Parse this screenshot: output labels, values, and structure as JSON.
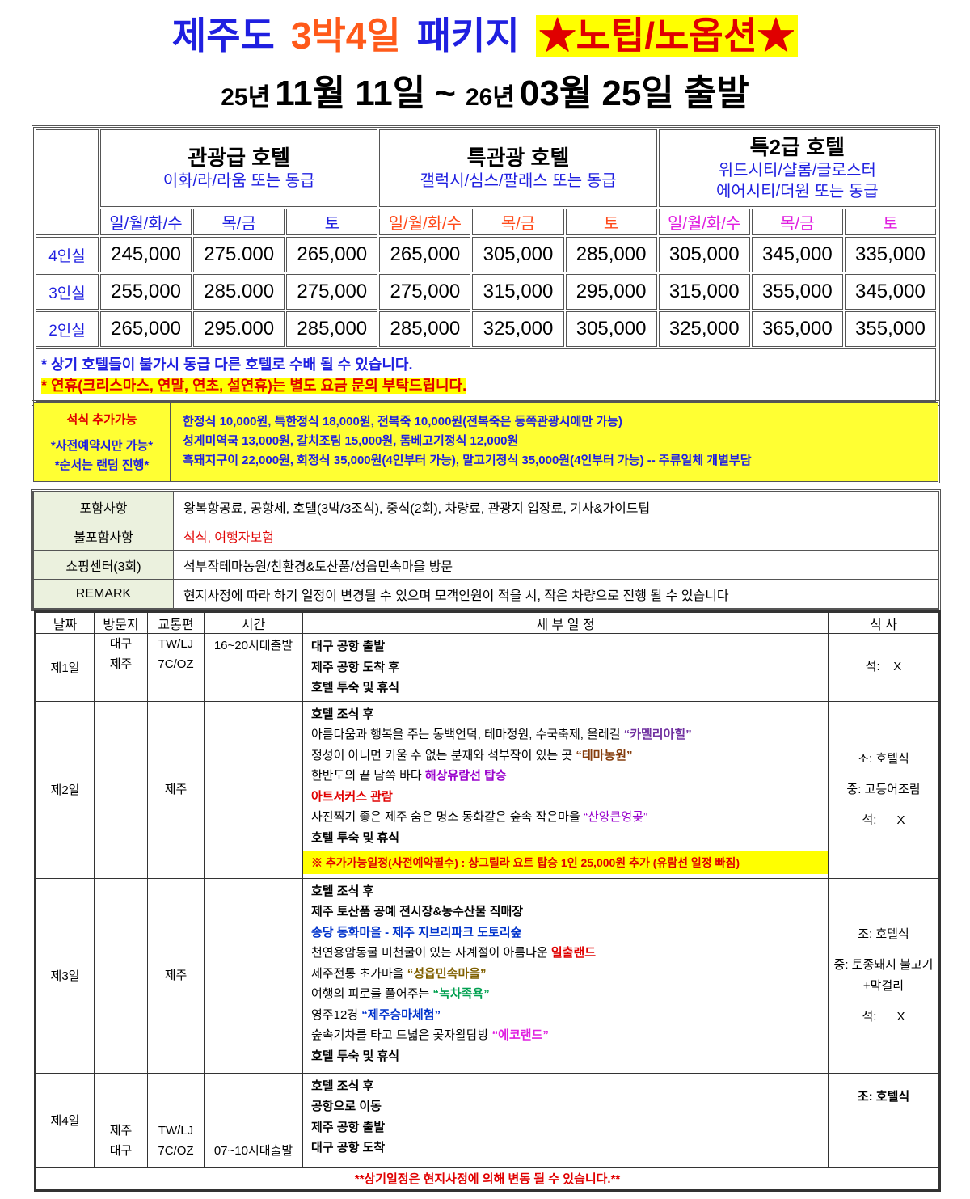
{
  "title": {
    "parts": [
      "제주도",
      "3박4일",
      "패키지",
      "★노팁/노옵션★"
    ],
    "dates": [
      "25년",
      "11월",
      "11일",
      "~",
      "26년",
      "03월",
      "25일",
      "출발"
    ]
  },
  "price_table": {
    "hotels": [
      {
        "name": "관광급 호텔",
        "examples": [
          "이화/라/라움 또는 동급"
        ],
        "days": [
          "일/월/화/수",
          "목/금",
          "토"
        ]
      },
      {
        "name": "특관광 호텔",
        "examples": [
          "갤럭시/심스/팔래스 또는 동급"
        ],
        "days": [
          "일/월/화/수",
          "목/금",
          "토"
        ]
      },
      {
        "name": "특2급 호텔",
        "examples": [
          "위드시티/샬롬/글로스터",
          "에어시티/더원 또는 동급"
        ],
        "days": [
          "일/월/화/수",
          "목/금",
          "토"
        ]
      }
    ],
    "rows": [
      {
        "room": "4인실",
        "prices": [
          "245,000",
          "275.000",
          "265,000",
          "265,000",
          "305,000",
          "285,000",
          "305,000",
          "345,000",
          "335,000"
        ]
      },
      {
        "room": "3인실",
        "prices": [
          "255,000",
          "285.000",
          "275,000",
          "275,000",
          "315,000",
          "295,000",
          "315,000",
          "355,000",
          "345,000"
        ]
      },
      {
        "room": "2인실",
        "prices": [
          "265,000",
          "295.000",
          "285,000",
          "285,000",
          "325,000",
          "305,000",
          "325,000",
          "365,000",
          "355,000"
        ]
      }
    ],
    "notes": [
      "* 상기 호텔들이 불가시 동급 다른 호텔로 수배 될 수 있습니다.",
      "* 연휴(크리스마스, 연말, 연초, 설연휴)는 별도 요금 문의 부탁드립니다."
    ]
  },
  "dinner": {
    "title": "석식 추가가능",
    "conditions": [
      "*사전예약시만 가능*",
      "*순서는 랜덤 진행*"
    ],
    "menu": [
      "한정식 10,000원, 특한정식 18,000원, 전복죽 10,000원(전복죽은 동쪽관광시에만 가능)",
      "성게미역국 13,000원, 갈치조림 15,000원, 돔베고기정식 12,000원",
      "흑돼지구이 22,000원, 회정식 35,000원(4인부터 가능), 말고기정식 35,000원(4인부터 가능) -- 주류일체 개별부담"
    ]
  },
  "info": {
    "rows": [
      {
        "label": "포함사항",
        "value": "왕복항공료, 공항세, 호텔(3박/3조식), 중식(2회), 차량료, 관광지 입장료, 기사&가이드팁"
      },
      {
        "label": "불포함사항",
        "value": "석식, 여행자보험"
      },
      {
        "label": "쇼핑센터(3회)",
        "value": "석부작테마농원/친환경&토산품/성읍민속마을 방문"
      },
      {
        "label": "REMARK",
        "value": "현지사정에 따라 하기 일정이 변경될 수 있으며 모객인원이 적을 시, 작은 차량으로 진행 될 수 있습니다"
      }
    ]
  },
  "itinerary": {
    "headers": [
      "날짜",
      "방문지",
      "교통편",
      "시간",
      "세 부 일 정",
      "식  사"
    ],
    "days": [
      {
        "day": "제1일",
        "places": [
          "대구",
          "제주"
        ],
        "transport": [
          "TW/LJ",
          "7C/OZ"
        ],
        "time": "16~20시대출발",
        "schedule": [
          [
            {
              "text": "대구 공항 출발",
              "bold": true
            }
          ],
          [
            {
              "text": "제주 공항 도착 후",
              "bold": true
            }
          ],
          [
            {
              "text": "호텔 투숙 및 휴식",
              "bold": true
            }
          ]
        ],
        "meals": [
          "석:    X"
        ],
        "meals_bold": false
      },
      {
        "day": "제2일",
        "places": [],
        "transport": [
          "제주"
        ],
        "time": "",
        "schedule": [
          [
            {
              "text": "호텔 조식 후",
              "bold": true
            }
          ],
          [
            {
              "text": "아름다움과 행복을 주는 동백언덕, 테마정원, 수국축제, 올레길 "
            },
            {
              "text": "“카멜리아힐”",
              "color": "#7030a0",
              "bold": true
            }
          ],
          [
            {
              "text": "정성이 아니면 키울 수 없는 분재와 석부작이 있는 곳 "
            },
            {
              "text": "“테마농원”",
              "color": "#843c0c",
              "bold": true
            }
          ],
          [
            {
              "text": "한반도의 끝 남쪽 바다 "
            },
            {
              "text": "해상유람선 탑승",
              "color": "#9900cc",
              "bold": true
            }
          ],
          [
            {
              "text": "아트서커스 관람",
              "color": "#e00000",
              "bold": true
            }
          ],
          [
            {
              "text": "사진찍기 좋은 제주 숨은 명소 동화같은 숲속 작은마을 "
            },
            {
              "text": "“산양큰엉곶”",
              "color": "#9900cc"
            }
          ],
          [
            {
              "text": "호텔 투숙 및 휴식",
              "bold": true
            }
          ]
        ],
        "extra": "※ 추가가능일정(사전예약필수) : 샹그릴라 요트 탑승 1인 25,000원 추가 (유람선 일정 빠짐)",
        "meals": [
          "조: 호텔식",
          "중: 고등어조림",
          "석:      X"
        ],
        "meals_bold": false
      },
      {
        "day": "제3일",
        "places": [],
        "transport": [
          "제주"
        ],
        "time": "",
        "schedule": [
          [
            {
              "text": "호텔 조식 후",
              "bold": true
            }
          ],
          [
            {
              "text": "제주 토산품 공예 전시장&농수산물 직매장",
              "bold": true
            }
          ],
          [
            {
              "text": "송당 동화마을  -  제주 지브리파크 도토리숲",
              "color": "#0033cc",
              "bold": true
            }
          ],
          [
            {
              "text": "천연용암동굴 미천굴이 있는 사계절이 아름다운 "
            },
            {
              "text": "일출랜드",
              "color": "#e00000",
              "bold": true
            }
          ],
          [
            {
              "text": "제주전통 초가마을 "
            },
            {
              "text": "“성읍민속마을”",
              "color": "#806000",
              "bold": true
            }
          ],
          [
            {
              "text": "여행의 피로를 풀어주는 "
            },
            {
              "text": "“녹차족욕”",
              "color": "#00a050",
              "bold": true
            }
          ],
          [
            {
              "text": "영주12경 "
            },
            {
              "text": "“제주승마체험”",
              "color": "#0033cc",
              "bold": true
            }
          ],
          [
            {
              "text": "숲속기차를 타고 드넓은 곶자왈탐방 "
            },
            {
              "text": "“에코랜드”",
              "color": "#e020e0",
              "bold": true
            }
          ],
          [
            {
              "text": "호텔 투숙 및 휴식",
              "bold": true
            }
          ]
        ],
        "meals": [
          "조: 호텔식",
          "중: 토종돼지 불고기+막걸리",
          "석:      X"
        ],
        "meals_bold": false
      },
      {
        "day": "제4일",
        "places": [
          "제주",
          "대구"
        ],
        "transport": [
          "TW/LJ",
          "7C/OZ"
        ],
        "time": "07~10시대출발",
        "schedule": [
          [
            {
              "text": "호텔 조식 후",
              "bold": true
            }
          ],
          [
            {
              "text": "공항으로 이동",
              "bold": true
            }
          ],
          [
            {
              "text": "제주 공항 출발",
              "bold": true
            }
          ],
          [
            {
              "text": "대구 공항 도착",
              "bold": true
            }
          ]
        ],
        "meals": [
          "조: 호텔식"
        ],
        "meals_bold": true
      }
    ],
    "footer": "**상기일정은 현지사정에 의해 변동 될 수 있습니다.**"
  }
}
